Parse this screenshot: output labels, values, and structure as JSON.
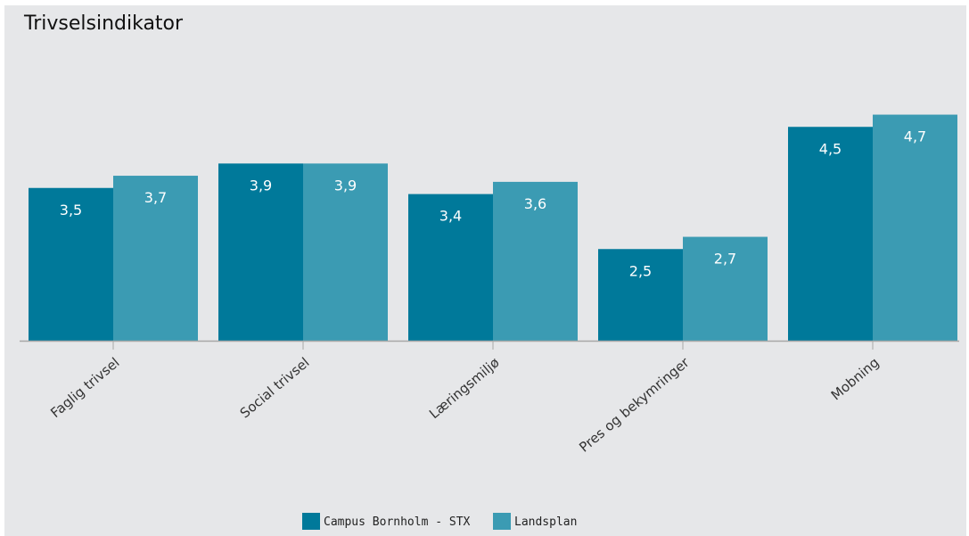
{
  "chart_data": {
    "type": "bar",
    "title": "Trivselsindikator",
    "categories": [
      "Faglig trivsel",
      "Social trivsel",
      "Læringsmiljø",
      "Pres og bekymringer",
      "Mobning"
    ],
    "series": [
      {
        "name": "Campus Bornholm - STX",
        "color": "#00799a",
        "values": [
          3.5,
          3.9,
          3.4,
          2.5,
          4.5
        ]
      },
      {
        "name": "Landsplan",
        "color": "#3b9bb3",
        "values": [
          3.7,
          3.9,
          3.6,
          2.7,
          4.7
        ]
      }
    ],
    "value_labels": [
      [
        "3,5",
        "3,9",
        "3,4",
        "2,5",
        "4,5"
      ],
      [
        "3,7",
        "3,9",
        "3,6",
        "2,7",
        "4,7"
      ]
    ],
    "ylim": [
      1,
      5
    ],
    "grid": false,
    "legend": "bottom-center",
    "axis_color": "#a8a8a8",
    "background": "#e6e7e9"
  }
}
